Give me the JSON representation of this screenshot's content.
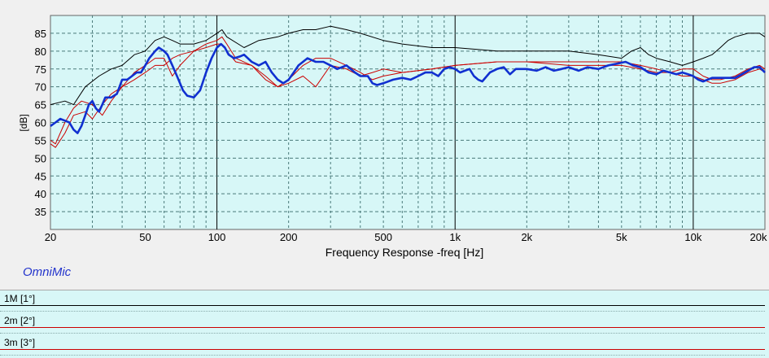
{
  "app_label": "OmniMic",
  "legend": [
    {
      "label": "1M [1°]",
      "color": "#000000"
    },
    {
      "label": "2m [2°]",
      "color": "#cc0000"
    },
    {
      "label": "3m [3°]",
      "color": "#cc0000"
    }
  ],
  "chart_data": {
    "type": "line",
    "xlabel": "Frequency Response -freq [Hz]",
    "ylabel": "[dB]",
    "xscale": "log",
    "xlim": [
      20,
      20000
    ],
    "ylim": [
      30,
      90
    ],
    "x_ticks": [
      {
        "v": 20,
        "t": "20"
      },
      {
        "v": 50,
        "t": "50"
      },
      {
        "v": 100,
        "t": "100"
      },
      {
        "v": 200,
        "t": "200"
      },
      {
        "v": 500,
        "t": "500"
      },
      {
        "v": 1000,
        "t": "1k"
      },
      {
        "v": 2000,
        "t": "2k"
      },
      {
        "v": 5000,
        "t": "5k"
      },
      {
        "v": 10000,
        "t": "10k"
      },
      {
        "v": 20000,
        "t": "20k"
      }
    ],
    "y_ticks": [
      35,
      40,
      45,
      50,
      55,
      60,
      65,
      70,
      75,
      80,
      85
    ],
    "grid": true,
    "series": [
      {
        "color": "#000000",
        "width": 1,
        "points": [
          [
            20,
            65
          ],
          [
            23,
            66
          ],
          [
            25,
            65
          ],
          [
            28,
            70
          ],
          [
            32,
            73
          ],
          [
            36,
            75
          ],
          [
            40,
            76
          ],
          [
            45,
            79
          ],
          [
            50,
            80
          ],
          [
            55,
            83
          ],
          [
            60,
            84
          ],
          [
            65,
            83
          ],
          [
            70,
            82
          ],
          [
            80,
            82
          ],
          [
            90,
            83
          ],
          [
            100,
            85
          ],
          [
            105,
            86
          ],
          [
            110,
            84
          ],
          [
            130,
            81
          ],
          [
            150,
            83
          ],
          [
            180,
            84
          ],
          [
            200,
            85
          ],
          [
            230,
            86
          ],
          [
            260,
            86
          ],
          [
            300,
            87
          ],
          [
            350,
            86
          ],
          [
            400,
            85
          ],
          [
            500,
            83
          ],
          [
            600,
            82
          ],
          [
            800,
            81
          ],
          [
            1000,
            81
          ],
          [
            1500,
            80
          ],
          [
            2000,
            80
          ],
          [
            3000,
            80
          ],
          [
            4000,
            79
          ],
          [
            5000,
            78
          ],
          [
            5500,
            80
          ],
          [
            6000,
            81
          ],
          [
            6500,
            79
          ],
          [
            7000,
            78
          ],
          [
            8000,
            77
          ],
          [
            9000,
            76
          ],
          [
            10000,
            77
          ],
          [
            11000,
            78
          ],
          [
            12000,
            79
          ],
          [
            13000,
            81
          ],
          [
            14000,
            83
          ],
          [
            15000,
            84
          ],
          [
            17000,
            85
          ],
          [
            19000,
            85
          ],
          [
            20000,
            84
          ]
        ]
      },
      {
        "color": "#cc0000",
        "width": 1,
        "points": [
          [
            20,
            55
          ],
          [
            21,
            54
          ],
          [
            23,
            60
          ],
          [
            25,
            64
          ],
          [
            27,
            66
          ],
          [
            30,
            65
          ],
          [
            33,
            62
          ],
          [
            36,
            66
          ],
          [
            40,
            70
          ],
          [
            45,
            74
          ],
          [
            50,
            76
          ],
          [
            55,
            78
          ],
          [
            60,
            78
          ],
          [
            65,
            73
          ],
          [
            70,
            76
          ],
          [
            80,
            80
          ],
          [
            90,
            82
          ],
          [
            100,
            83
          ],
          [
            105,
            84
          ],
          [
            110,
            82
          ],
          [
            120,
            78
          ],
          [
            140,
            76
          ],
          [
            160,
            72
          ],
          [
            180,
            70
          ],
          [
            200,
            72
          ],
          [
            230,
            76
          ],
          [
            260,
            78
          ],
          [
            300,
            78
          ],
          [
            350,
            76
          ],
          [
            400,
            74
          ],
          [
            450,
            72
          ],
          [
            500,
            73
          ],
          [
            600,
            74
          ],
          [
            800,
            75
          ],
          [
            1000,
            76
          ],
          [
            1500,
            77
          ],
          [
            2000,
            77
          ],
          [
            3000,
            77
          ],
          [
            4000,
            77
          ],
          [
            5000,
            77
          ],
          [
            6000,
            76
          ],
          [
            7000,
            75
          ],
          [
            8000,
            74
          ],
          [
            9000,
            75
          ],
          [
            10000,
            75
          ],
          [
            11000,
            73
          ],
          [
            12000,
            72
          ],
          [
            13000,
            72
          ],
          [
            15000,
            73
          ],
          [
            17000,
            75
          ],
          [
            19000,
            76
          ],
          [
            20000,
            75
          ]
        ]
      },
      {
        "color": "#cc0000",
        "width": 1,
        "points": [
          [
            20,
            54
          ],
          [
            21,
            53
          ],
          [
            23,
            57
          ],
          [
            25,
            62
          ],
          [
            28,
            63
          ],
          [
            30,
            61
          ],
          [
            33,
            65
          ],
          [
            36,
            68
          ],
          [
            40,
            70
          ],
          [
            45,
            72
          ],
          [
            50,
            74
          ],
          [
            55,
            76
          ],
          [
            60,
            76
          ],
          [
            65,
            78
          ],
          [
            70,
            79
          ],
          [
            80,
            80
          ],
          [
            90,
            81
          ],
          [
            100,
            82
          ],
          [
            105,
            82
          ],
          [
            110,
            80
          ],
          [
            120,
            77
          ],
          [
            140,
            76
          ],
          [
            160,
            73
          ],
          [
            180,
            70
          ],
          [
            200,
            71
          ],
          [
            230,
            73
          ],
          [
            260,
            70
          ],
          [
            300,
            76
          ],
          [
            350,
            75
          ],
          [
            400,
            73
          ],
          [
            450,
            74
          ],
          [
            500,
            75
          ],
          [
            600,
            74
          ],
          [
            800,
            75
          ],
          [
            1000,
            76
          ],
          [
            1500,
            77
          ],
          [
            2000,
            77
          ],
          [
            3000,
            76
          ],
          [
            4000,
            76
          ],
          [
            5000,
            76
          ],
          [
            6000,
            75
          ],
          [
            7000,
            74
          ],
          [
            8000,
            74
          ],
          [
            9000,
            73
          ],
          [
            10000,
            73
          ],
          [
            11000,
            72
          ],
          [
            12000,
            71
          ],
          [
            13000,
            71
          ],
          [
            15000,
            72
          ],
          [
            17000,
            74
          ],
          [
            19000,
            75
          ],
          [
            20000,
            74
          ]
        ]
      },
      {
        "color": "#1030d0",
        "width": 2.6,
        "points": [
          [
            20,
            59
          ],
          [
            21,
            60
          ],
          [
            22,
            61
          ],
          [
            23,
            60.5
          ],
          [
            24,
            60
          ],
          [
            25,
            58
          ],
          [
            26,
            57
          ],
          [
            27,
            59
          ],
          [
            28,
            62
          ],
          [
            29,
            65
          ],
          [
            30,
            66
          ],
          [
            31,
            64
          ],
          [
            32,
            63
          ],
          [
            33,
            65
          ],
          [
            34,
            67
          ],
          [
            36,
            67
          ],
          [
            38,
            68
          ],
          [
            40,
            72
          ],
          [
            42,
            72
          ],
          [
            44,
            73
          ],
          [
            46,
            74
          ],
          [
            48,
            74
          ],
          [
            50,
            76
          ],
          [
            52,
            78
          ],
          [
            55,
            80
          ],
          [
            57,
            81
          ],
          [
            60,
            80
          ],
          [
            62,
            79
          ],
          [
            65,
            76
          ],
          [
            68,
            73
          ],
          [
            70,
            71
          ],
          [
            72,
            69
          ],
          [
            75,
            67.5
          ],
          [
            80,
            67
          ],
          [
            85,
            69
          ],
          [
            90,
            74
          ],
          [
            95,
            78
          ],
          [
            100,
            81
          ],
          [
            104,
            82
          ],
          [
            108,
            81
          ],
          [
            112,
            79
          ],
          [
            118,
            78
          ],
          [
            125,
            78.5
          ],
          [
            130,
            79
          ],
          [
            140,
            77
          ],
          [
            150,
            76
          ],
          [
            160,
            77
          ],
          [
            170,
            74
          ],
          [
            180,
            72
          ],
          [
            190,
            71
          ],
          [
            200,
            72
          ],
          [
            210,
            74
          ],
          [
            220,
            76
          ],
          [
            240,
            78
          ],
          [
            260,
            77
          ],
          [
            280,
            77
          ],
          [
            300,
            76
          ],
          [
            320,
            75
          ],
          [
            350,
            76
          ],
          [
            380,
            74
          ],
          [
            400,
            73
          ],
          [
            430,
            73
          ],
          [
            450,
            71
          ],
          [
            470,
            70.5
          ],
          [
            500,
            71
          ],
          [
            550,
            72
          ],
          [
            600,
            72.5
          ],
          [
            650,
            72
          ],
          [
            700,
            73
          ],
          [
            750,
            74
          ],
          [
            800,
            74
          ],
          [
            850,
            73
          ],
          [
            900,
            75
          ],
          [
            950,
            75.5
          ],
          [
            1000,
            75
          ],
          [
            1050,
            74
          ],
          [
            1100,
            74.5
          ],
          [
            1150,
            75
          ],
          [
            1200,
            73
          ],
          [
            1250,
            72
          ],
          [
            1300,
            71.5
          ],
          [
            1400,
            74
          ],
          [
            1500,
            75
          ],
          [
            1600,
            75.5
          ],
          [
            1700,
            73.5
          ],
          [
            1800,
            75
          ],
          [
            2000,
            75
          ],
          [
            2200,
            74.5
          ],
          [
            2400,
            75.5
          ],
          [
            2600,
            74.5
          ],
          [
            2800,
            75
          ],
          [
            3000,
            75.5
          ],
          [
            3300,
            74.5
          ],
          [
            3600,
            75.5
          ],
          [
            4000,
            75
          ],
          [
            4400,
            76
          ],
          [
            4800,
            76.5
          ],
          [
            5200,
            77
          ],
          [
            5600,
            76
          ],
          [
            6000,
            75.5
          ],
          [
            6500,
            74
          ],
          [
            7000,
            73.5
          ],
          [
            7500,
            74.5
          ],
          [
            8000,
            74
          ],
          [
            8500,
            73.5
          ],
          [
            9000,
            74
          ],
          [
            9500,
            73.5
          ],
          [
            10000,
            73
          ],
          [
            10500,
            72
          ],
          [
            11000,
            71.5
          ],
          [
            11500,
            72
          ],
          [
            12000,
            72.5
          ],
          [
            13000,
            72.5
          ],
          [
            14000,
            72.5
          ],
          [
            15000,
            72.5
          ],
          [
            16000,
            73.5
          ],
          [
            17000,
            74.5
          ],
          [
            18000,
            75.5
          ],
          [
            19000,
            75.5
          ],
          [
            20000,
            74
          ]
        ]
      }
    ]
  }
}
